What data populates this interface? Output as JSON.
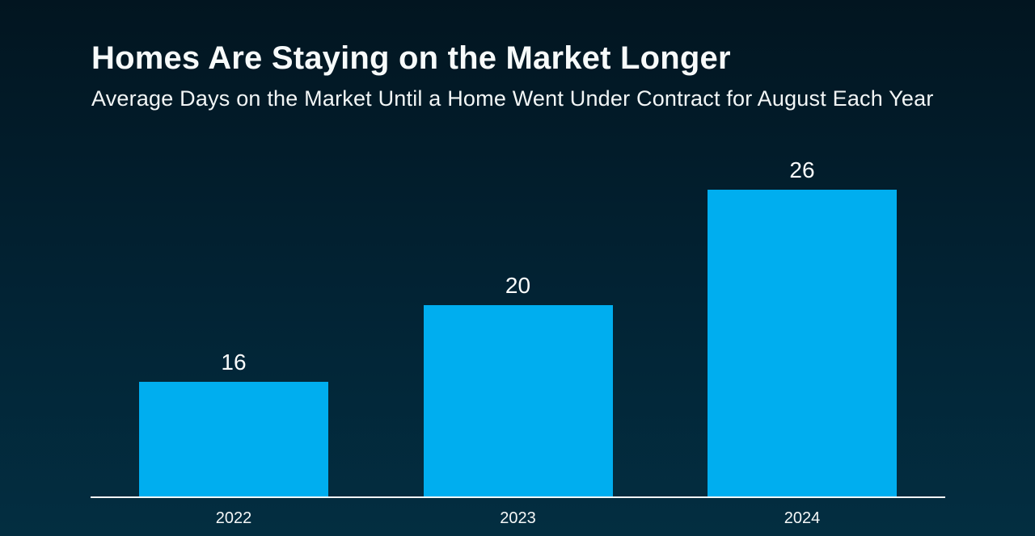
{
  "page": {
    "background_top": "#021520",
    "background_bottom": "#032e41",
    "text_color": "#ffffff"
  },
  "header": {
    "title": "Homes Are Staying on the Market Longer",
    "subtitle": "Average Days on the Market Until a Home Went Under Contract for August Each Year"
  },
  "chart_data": {
    "type": "bar",
    "title": "Homes Are Staying on the Market Longer",
    "subtitle": "Average Days on the Market Until a Home Went Under Contract for August Each Year",
    "categories": [
      "2022",
      "2023",
      "2024"
    ],
    "values": [
      16,
      20,
      26
    ],
    "xlabel": "",
    "ylabel": "",
    "ylim": [
      10,
      26
    ],
    "grid": false,
    "legend": false,
    "data_labels_shown": true,
    "bar_color": "#00AEEF",
    "value_label_color": "#FAFCFC",
    "axis_line_color": "#F5F8F8"
  }
}
